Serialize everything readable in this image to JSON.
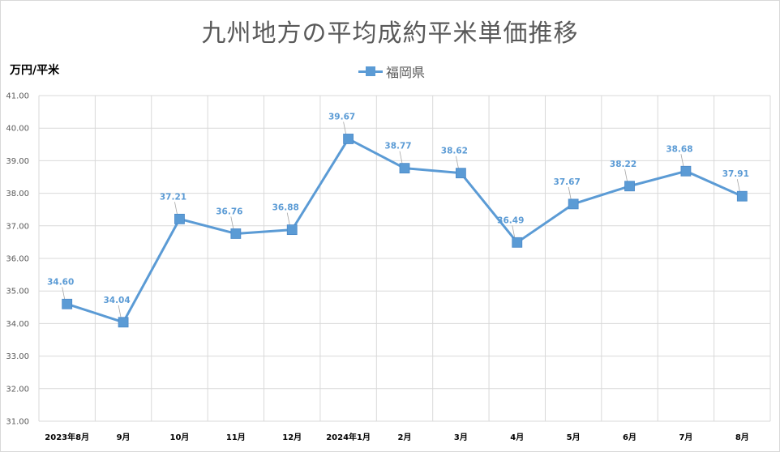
{
  "chart_data": {
    "type": "line",
    "title": "九州地方の平均成約平米単価推移",
    "ylabel": "万円/平米",
    "xlabel": "",
    "categories": [
      "2023年8月",
      "9月",
      "10月",
      "11月",
      "12月",
      "2024年1月",
      "2月",
      "3月",
      "4月",
      "5月",
      "6月",
      "7月",
      "8月"
    ],
    "series": [
      {
        "name": "福岡県",
        "values": [
          34.6,
          34.04,
          37.21,
          36.76,
          36.88,
          39.67,
          38.77,
          38.62,
          36.49,
          37.67,
          38.22,
          38.68,
          37.91
        ],
        "labels": [
          "34.60",
          "34.04",
          "37.21",
          "36.76",
          "36.88",
          "39.67",
          "38.77",
          "38.62",
          "36.49",
          "37.67",
          "38.22",
          "38.68",
          "37.91"
        ],
        "color": "#5b9bd5"
      }
    ],
    "ylim": [
      31,
      41
    ],
    "yticks": [
      "31.00",
      "32.00",
      "33.00",
      "34.00",
      "35.00",
      "36.00",
      "37.00",
      "38.00",
      "39.00",
      "40.00",
      "41.00"
    ],
    "grid": true,
    "legend": "top-center",
    "gridColor": "#d9d9d9"
  }
}
